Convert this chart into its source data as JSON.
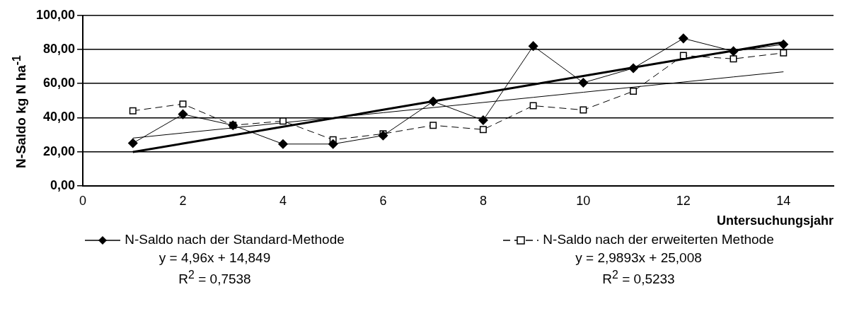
{
  "chart_data": {
    "type": "line",
    "xlabel": "Untersuchungsjahr",
    "ylabel": "N-Saldo kg N ha$^{-1}$",
    "x": [
      1,
      2,
      3,
      4,
      5,
      6,
      7,
      8,
      9,
      10,
      11,
      12,
      13,
      14
    ],
    "series": [
      {
        "name": "N-Saldo nach der Standard-Methode",
        "color": "#000000",
        "marker": "diamond",
        "line_style": "solid",
        "values": [
          25,
          42,
          35.5,
          24.5,
          24.5,
          29.5,
          49.5,
          38.5,
          82,
          60.5,
          69,
          86.5,
          79,
          83
        ]
      },
      {
        "name": "N-Saldo nach der erweiterten Methode",
        "color": "#000000",
        "marker": "square",
        "line_style": "dashed",
        "values": [
          44,
          48,
          35.5,
          38,
          27,
          30.5,
          35.5,
          33,
          47,
          44.5,
          55.5,
          76.5,
          74.5,
          78
        ]
      },
      {
        "type": "line",
        "color": "#000000",
        "marker": "none",
        "line_style": "solid",
        "values": [
          19.8,
          24.8,
          29.7,
          34.7,
          39.6,
          44.6,
          49.6,
          54.5,
          59.5,
          64.4,
          69.4,
          74.4,
          79.3,
          84.3
        ]
      },
      {
        "type": "line",
        "color": "#000000",
        "marker": "none",
        "line_style": "solid",
        "values": [
          28.0,
          31.0,
          34.0,
          37.0,
          40.0,
          42.9,
          45.9,
          48.9,
          51.9,
          54.9,
          57.9,
          60.9,
          63.9,
          66.9
        ]
      }
    ],
    "xlim": [
      0,
      15
    ],
    "xticks": [
      0,
      2,
      4,
      6,
      8,
      10,
      12,
      14
    ],
    "ylim": [
      0,
      100
    ],
    "yticks": [
      {
        "value": 0,
        "label": "0,00"
      },
      {
        "value": 20,
        "label": "20,00"
      },
      {
        "value": 40,
        "label": "40,00"
      },
      {
        "value": 60,
        "label": "60,00"
      },
      {
        "value": 80,
        "label": "80,00"
      },
      {
        "value": 100,
        "label": "100,00"
      }
    ],
    "grid": "y",
    "legend": "bottom",
    "annotations": [
      "y = 4,96x + 14,849",
      "R$^{2}$ = 0,7538",
      "y = 2,9893x + 25,008",
      "R$^{2}$ = 0,5233"
    ]
  }
}
